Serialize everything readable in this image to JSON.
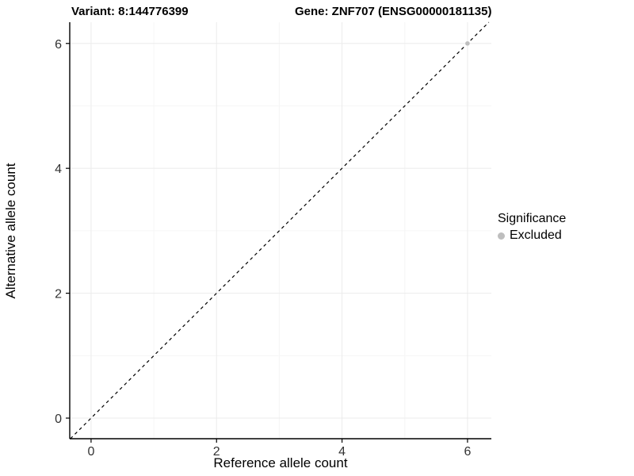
{
  "titles": {
    "variant": "Variant: 8:144776399",
    "gene": "Gene: ZNF707 (ENSG00000181135)"
  },
  "chart_data": {
    "type": "scatter",
    "title_left": "Variant: 8:144776399",
    "title_right": "Gene: ZNF707 (ENSG00000181135)",
    "xlabel": "Reference allele count",
    "ylabel": "Alternative allele count",
    "xlim": [
      -0.34,
      6.38
    ],
    "ylim": [
      -0.33,
      6.34
    ],
    "x_ticks": [
      0,
      2,
      4,
      6
    ],
    "y_ticks": [
      0,
      2,
      4,
      6
    ],
    "x_minor_ticks": [
      1,
      3,
      5
    ],
    "y_minor_ticks": [
      1,
      3,
      5
    ],
    "grid": true,
    "legend_position": "right",
    "reference_line": {
      "type": "abline",
      "slope": 1,
      "intercept": 0,
      "style": "dashed",
      "color": "#000000"
    },
    "series": [
      {
        "name": "Excluded",
        "color": "#bebebe",
        "points": [
          {
            "x": 6,
            "y": 6
          }
        ]
      }
    ],
    "legend": {
      "title": "Significance",
      "items": [
        {
          "label": "Excluded",
          "color": "#bebebe"
        }
      ]
    }
  },
  "colors": {
    "panel_background": "#ffffff",
    "grid_major": "#ebebeb",
    "grid_minor": "#f6f6f6",
    "axis_line": "#000000",
    "tick_text": "#333333",
    "point": "#bebebe"
  }
}
